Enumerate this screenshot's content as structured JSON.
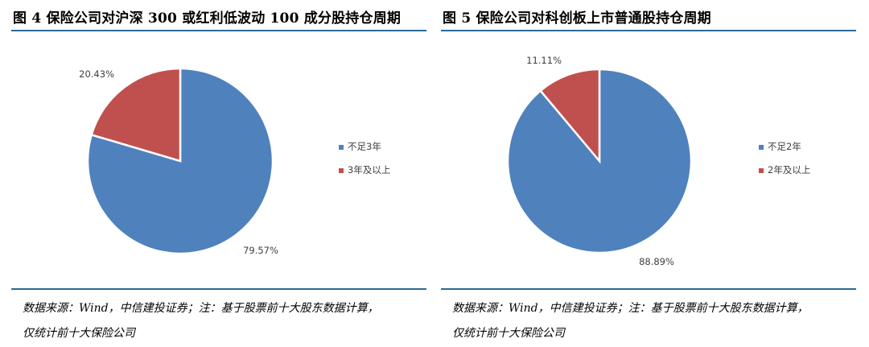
{
  "panels": [
    {
      "title": "图 4 保险公司对沪深 300 或红利低波动 100 成分股持仓周期",
      "source_line1": "数据来源：Wind，中信建投证券；注：基于股票前十大股东数据计算，",
      "source_line2": "仅统计前十大保险公司"
    },
    {
      "title": "图 5 保险公司对科创板上市普通股持仓周期",
      "source_line1": "数据来源：Wind，中信建投证券；注：基于股票前十大股东数据计算，",
      "source_line2": "仅统计前十大保险公司"
    }
  ],
  "chart_data": [
    {
      "type": "pie",
      "title": "",
      "slices": [
        {
          "label": "不足3年",
          "value": 79.57,
          "display": "79.57%",
          "color": "#4f81bd"
        },
        {
          "label": "3年及以上",
          "value": 20.43,
          "display": "20.43%",
          "color": "#c0504d"
        }
      ],
      "legend_placement": "right"
    },
    {
      "type": "pie",
      "title": "",
      "slices": [
        {
          "label": "不足2年",
          "value": 88.89,
          "display": "88.89%",
          "color": "#4f81bd"
        },
        {
          "label": "2年及以上",
          "value": 11.11,
          "display": "11.11%",
          "color": "#c0504d"
        }
      ],
      "legend_placement": "right"
    }
  ],
  "colors": {
    "rule": "#2b6a97"
  }
}
